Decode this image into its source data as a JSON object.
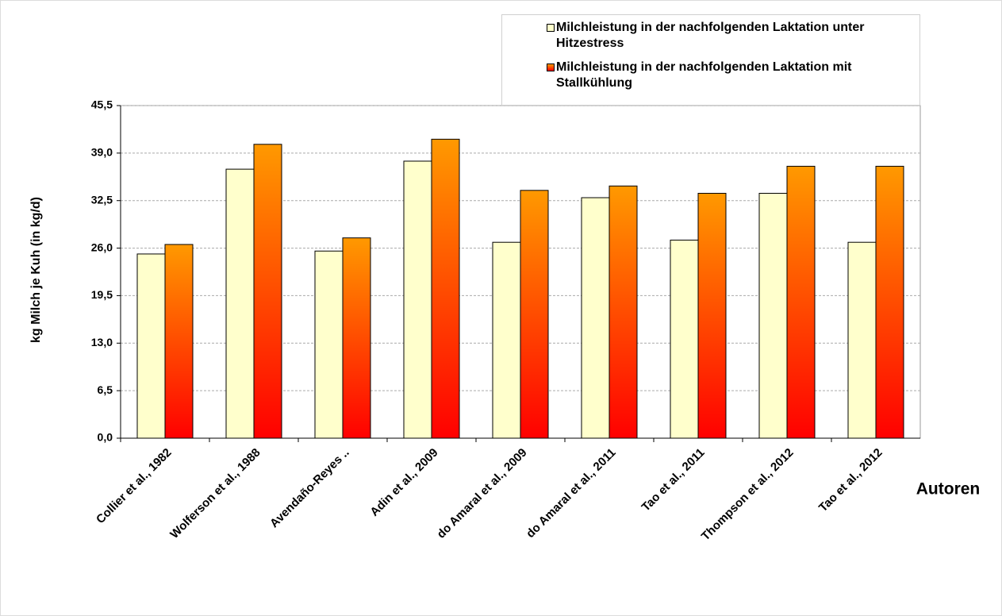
{
  "chart_data": {
    "type": "bar",
    "x_label": "Autoren",
    "y_label": "kg Milch je Kuh (in kg/d)",
    "categories": [
      "Collier et al., 1982",
      "Wolferson et al., 1988",
      "Avendaño-Reyes ..",
      "Adin et al., 2009",
      "do Amaral et al., 2009",
      "do Amaral et al., 2011",
      "Tao et al., 2011",
      "Thompson et al., 2012",
      "Tao et al., 2012"
    ],
    "series": [
      {
        "name": "Milchleistung in der nachfolgenden Laktation unter Hitzestress",
        "color": "#ffffcc",
        "values": [
          25.2,
          36.8,
          25.6,
          37.9,
          26.8,
          32.9,
          27.1,
          33.5,
          26.8
        ]
      },
      {
        "name": "Milchleistung in der nachfolgenden Laktation mit Stallkühlung",
        "color": "#ff8c00",
        "values": [
          26.5,
          40.2,
          27.4,
          40.9,
          33.9,
          34.5,
          33.5,
          37.2,
          37.2
        ]
      }
    ],
    "ylim": [
      0,
      45.5
    ],
    "yticks": [
      {
        "value": 0,
        "label": "0,0"
      },
      {
        "value": 6.5,
        "label": "6,5"
      },
      {
        "value": 13,
        "label": "13,0"
      },
      {
        "value": 19.5,
        "label": "19,5"
      },
      {
        "value": 26,
        "label": "26,0"
      },
      {
        "value": 32.5,
        "label": "32,5"
      },
      {
        "value": 39,
        "label": "39,0"
      },
      {
        "value": 45.5,
        "label": "45,5"
      }
    ],
    "grid": true
  }
}
